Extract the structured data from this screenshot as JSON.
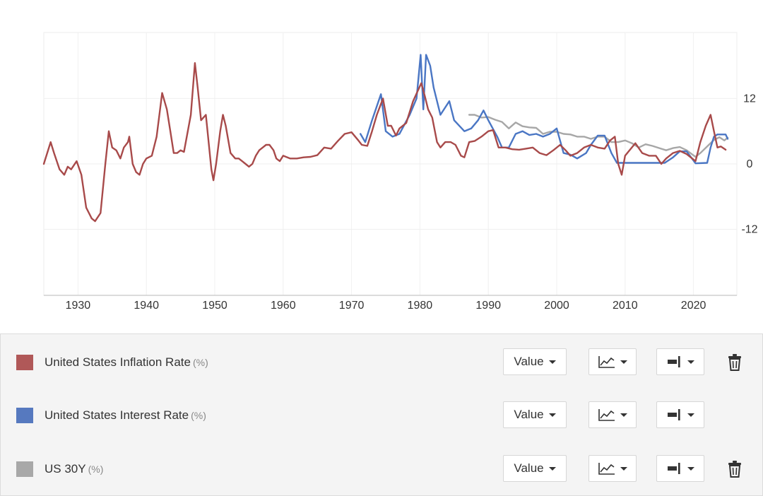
{
  "chart_data": {
    "type": "line",
    "x_ticks": [
      "1930",
      "1940",
      "1950",
      "1960",
      "1970",
      "1980",
      "1990",
      "2000",
      "2010",
      "2020"
    ],
    "y_ticks": [
      "12",
      "0",
      "-12"
    ],
    "xlim": [
      1925,
      2025
    ],
    "ylim": [
      -24,
      24
    ],
    "grid": true,
    "series": [
      {
        "name": "United States Inflation Rate",
        "unit": "(%)",
        "color": "#a84a4a",
        "points": [
          [
            1925,
            0
          ],
          [
            1926,
            4
          ],
          [
            1926.5,
            2
          ],
          [
            1927.3,
            -1
          ],
          [
            1928,
            -2
          ],
          [
            1928.5,
            -0.5
          ],
          [
            1929,
            -1
          ],
          [
            1929.8,
            0.5
          ],
          [
            1930.5,
            -2
          ],
          [
            1931.2,
            -8
          ],
          [
            1932,
            -10
          ],
          [
            1932.5,
            -10.5
          ],
          [
            1933.3,
            -9
          ],
          [
            1934,
            0
          ],
          [
            1934.5,
            6
          ],
          [
            1935,
            3
          ],
          [
            1935.6,
            2.5
          ],
          [
            1936.2,
            1
          ],
          [
            1936.7,
            3
          ],
          [
            1937.3,
            4
          ],
          [
            1937.5,
            5
          ],
          [
            1938,
            0
          ],
          [
            1938.5,
            -1.5
          ],
          [
            1939,
            -2
          ],
          [
            1939.5,
            0
          ],
          [
            1940,
            1
          ],
          [
            1940.8,
            1.5
          ],
          [
            1941.5,
            5
          ],
          [
            1942.3,
            13
          ],
          [
            1943,
            10
          ],
          [
            1943.5,
            6
          ],
          [
            1944,
            2
          ],
          [
            1944.5,
            2
          ],
          [
            1945,
            2.5
          ],
          [
            1945.5,
            2.2
          ],
          [
            1946.5,
            9
          ],
          [
            1947.1,
            18.5
          ],
          [
            1947.5,
            14
          ],
          [
            1948,
            8
          ],
          [
            1948.7,
            9
          ],
          [
            1949.5,
            -1
          ],
          [
            1949.8,
            -3
          ],
          [
            1950.2,
            0
          ],
          [
            1950.8,
            6
          ],
          [
            1951.2,
            9
          ],
          [
            1951.6,
            7
          ],
          [
            1952.3,
            2
          ],
          [
            1953,
            1
          ],
          [
            1953.5,
            1
          ],
          [
            1954,
            0.5
          ],
          [
            1954.5,
            0
          ],
          [
            1955,
            -0.5
          ],
          [
            1955.5,
            0
          ],
          [
            1956,
            1.5
          ],
          [
            1956.5,
            2.5
          ],
          [
            1957,
            3
          ],
          [
            1957.5,
            3.5
          ],
          [
            1958,
            3.5
          ],
          [
            1958.6,
            2.5
          ],
          [
            1959,
            1
          ],
          [
            1959.5,
            0.5
          ],
          [
            1960,
            1.5
          ],
          [
            1961,
            1
          ],
          [
            1962,
            1
          ],
          [
            1963,
            1.2
          ],
          [
            1964,
            1.3
          ],
          [
            1965,
            1.6
          ],
          [
            1966,
            3
          ],
          [
            1967,
            2.8
          ],
          [
            1968,
            4.2
          ],
          [
            1969,
            5.5
          ],
          [
            1970,
            5.8
          ],
          [
            1971,
            4.3
          ],
          [
            1971.5,
            3.5
          ],
          [
            1972.3,
            3.3
          ],
          [
            1973,
            6
          ],
          [
            1973.7,
            9
          ],
          [
            1974.6,
            12
          ],
          [
            1975.3,
            7
          ],
          [
            1975.8,
            7
          ],
          [
            1976.5,
            5.2
          ],
          [
            1977,
            6.5
          ],
          [
            1978,
            7.5
          ],
          [
            1979,
            11.5
          ],
          [
            1980.2,
            14.8
          ],
          [
            1980.7,
            12.5
          ],
          [
            1981.2,
            10
          ],
          [
            1981.8,
            8.5
          ],
          [
            1982.5,
            4
          ],
          [
            1983,
            3
          ],
          [
            1983.7,
            4
          ],
          [
            1984.5,
            4
          ],
          [
            1985.2,
            3.5
          ],
          [
            1986,
            1.5
          ],
          [
            1986.5,
            1.2
          ],
          [
            1987.2,
            4
          ],
          [
            1988,
            4.2
          ],
          [
            1989,
            5
          ],
          [
            1990,
            6
          ],
          [
            1990.7,
            6.2
          ],
          [
            1991.5,
            3
          ],
          [
            1992.5,
            3
          ],
          [
            1993.5,
            2.7
          ],
          [
            1994.5,
            2.6
          ],
          [
            1995.5,
            2.8
          ],
          [
            1996.5,
            3
          ],
          [
            1997.5,
            2
          ],
          [
            1998.5,
            1.6
          ],
          [
            1999.5,
            2.5
          ],
          [
            2000.5,
            3.5
          ],
          [
            2001.3,
            2.5
          ],
          [
            2002,
            1.5
          ],
          [
            2003,
            2
          ],
          [
            2004,
            3
          ],
          [
            2005,
            3.5
          ],
          [
            2006,
            3
          ],
          [
            2007,
            2.8
          ],
          [
            2007.8,
            4.3
          ],
          [
            2008.5,
            5
          ],
          [
            2009,
            0
          ],
          [
            2009.5,
            -2
          ],
          [
            2010,
            1.5
          ],
          [
            2011.5,
            3.8
          ],
          [
            2012.5,
            2
          ],
          [
            2013.5,
            1.5
          ],
          [
            2014.5,
            1.5
          ],
          [
            2015.3,
            0
          ],
          [
            2016,
            1
          ],
          [
            2017,
            2
          ],
          [
            2018,
            2.4
          ],
          [
            2019,
            1.8
          ],
          [
            2020.3,
            0.5
          ],
          [
            2021,
            4
          ],
          [
            2021.8,
            7
          ],
          [
            2022.5,
            9
          ],
          [
            2023,
            6
          ],
          [
            2023.5,
            3
          ],
          [
            2024,
            3.2
          ],
          [
            2024.7,
            2.6
          ]
        ]
      },
      {
        "name": "United States Interest Rate",
        "unit": "(%)",
        "color": "#4a76c4",
        "points": [
          [
            1971.3,
            5.5
          ],
          [
            1972,
            4
          ],
          [
            1973,
            8
          ],
          [
            1974.3,
            12.8
          ],
          [
            1975,
            6
          ],
          [
            1976,
            5
          ],
          [
            1977,
            5.5
          ],
          [
            1978.5,
            9
          ],
          [
            1979.5,
            12
          ],
          [
            1980.1,
            20
          ],
          [
            1980.5,
            10
          ],
          [
            1980.9,
            20
          ],
          [
            1981.5,
            18
          ],
          [
            1982,
            14
          ],
          [
            1983,
            9
          ],
          [
            1984.3,
            11.5
          ],
          [
            1985,
            8
          ],
          [
            1986.5,
            6
          ],
          [
            1987.5,
            6.5
          ],
          [
            1988.5,
            8
          ],
          [
            1989.3,
            9.8
          ],
          [
            1990,
            8
          ],
          [
            1991.3,
            5
          ],
          [
            1992,
            3
          ],
          [
            1993,
            3
          ],
          [
            1994,
            5.5
          ],
          [
            1995,
            6
          ],
          [
            1996,
            5.3
          ],
          [
            1997,
            5.5
          ],
          [
            1998,
            5
          ],
          [
            1999,
            5.5
          ],
          [
            2000,
            6.5
          ],
          [
            2001,
            2
          ],
          [
            2002,
            1.7
          ],
          [
            2003,
            1
          ],
          [
            2004.3,
            2
          ],
          [
            2005,
            3.5
          ],
          [
            2006,
            5.2
          ],
          [
            2007,
            5.2
          ],
          [
            2008,
            2
          ],
          [
            2008.8,
            0.2
          ],
          [
            2015.8,
            0.2
          ],
          [
            2017,
            1.2
          ],
          [
            2018,
            2.3
          ],
          [
            2019,
            2.3
          ],
          [
            2020.3,
            0.1
          ],
          [
            2022,
            0.2
          ],
          [
            2022.5,
            3
          ],
          [
            2023,
            5
          ],
          [
            2023.5,
            5.4
          ],
          [
            2024.7,
            5.4
          ],
          [
            2025,
            4.6
          ]
        ]
      },
      {
        "name": "US 30Y",
        "unit": "(%)",
        "color": "#a7a7a7",
        "points": [
          [
            1987.2,
            9
          ],
          [
            1988,
            9
          ],
          [
            1989,
            8.5
          ],
          [
            1990,
            8.6
          ],
          [
            1991,
            8.1
          ],
          [
            1992,
            7.7
          ],
          [
            1993,
            6.5
          ],
          [
            1994,
            7.6
          ],
          [
            1995,
            6.9
          ],
          [
            1996,
            6.7
          ],
          [
            1997,
            6.6
          ],
          [
            1998,
            5.5
          ],
          [
            1999,
            5.9
          ],
          [
            2000,
            5.9
          ],
          [
            2001,
            5.5
          ],
          [
            2002,
            5.4
          ],
          [
            2003,
            5
          ],
          [
            2004,
            5
          ],
          [
            2005,
            4.6
          ],
          [
            2006,
            5
          ],
          [
            2007,
            5
          ],
          [
            2008,
            4
          ],
          [
            2009,
            4
          ],
          [
            2010,
            4.3
          ],
          [
            2011,
            3.8
          ],
          [
            2012,
            3
          ],
          [
            2013,
            3.6
          ],
          [
            2014,
            3.3
          ],
          [
            2015,
            2.9
          ],
          [
            2016,
            2.5
          ],
          [
            2017,
            2.9
          ],
          [
            2018,
            3.1
          ],
          [
            2019,
            2.5
          ],
          [
            2020.3,
            1.3
          ],
          [
            2021,
            2
          ],
          [
            2022,
            3.2
          ],
          [
            2023,
            4.4
          ],
          [
            2023.8,
            4.9
          ],
          [
            2024.5,
            4.3
          ],
          [
            2025,
            4.8
          ]
        ]
      }
    ]
  },
  "legend": [
    {
      "name": "United States Inflation Rate",
      "unit": "(%)",
      "color": "#b05858",
      "value_label": "Value",
      "deletable": true
    },
    {
      "name": "United States Interest Rate",
      "unit": "(%)",
      "color": "#5679bf",
      "value_label": "Value",
      "deletable": false
    },
    {
      "name": "US 30Y",
      "unit": "(%)",
      "color": "#a8a8a8",
      "value_label": "Value",
      "deletable": true
    }
  ]
}
